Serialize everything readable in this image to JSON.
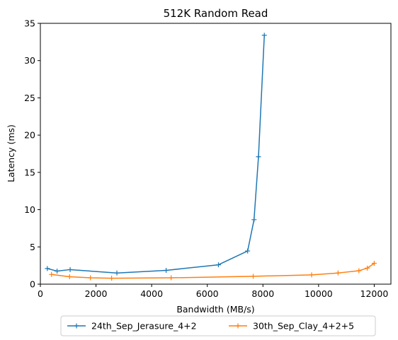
{
  "chart_data": {
    "type": "line",
    "title": "512K  Random Read",
    "xlabel": "Bandwidth (MB/s)",
    "ylabel": "Latency (ms)",
    "xlim": [
      0,
      12600
    ],
    "ylim": [
      0,
      35
    ],
    "xticks": [
      0,
      2000,
      4000,
      6000,
      8000,
      10000,
      12000
    ],
    "yticks": [
      0,
      5,
      10,
      15,
      20,
      25,
      30,
      35
    ],
    "grid": false,
    "legend_position": "bottom-center",
    "marker": "+",
    "series": [
      {
        "name": "24th_Sep_Jerasure_4+2",
        "color": "#1f77b4",
        "x": [
          250,
          600,
          1070,
          2750,
          4520,
          6400,
          7450,
          7680,
          7840,
          8050
        ],
        "y": [
          2.1,
          1.75,
          1.95,
          1.5,
          1.85,
          2.6,
          4.45,
          8.65,
          17.1,
          33.4
        ]
      },
      {
        "name": "30th_Sep_Clay_4+2+5",
        "color": "#ff7f0e",
        "x": [
          400,
          1050,
          1800,
          2560,
          4700,
          7650,
          9750,
          10700,
          11450,
          11750,
          12000
        ],
        "y": [
          1.3,
          1.0,
          0.85,
          0.8,
          0.85,
          1.05,
          1.25,
          1.5,
          1.8,
          2.15,
          2.8
        ]
      }
    ]
  }
}
